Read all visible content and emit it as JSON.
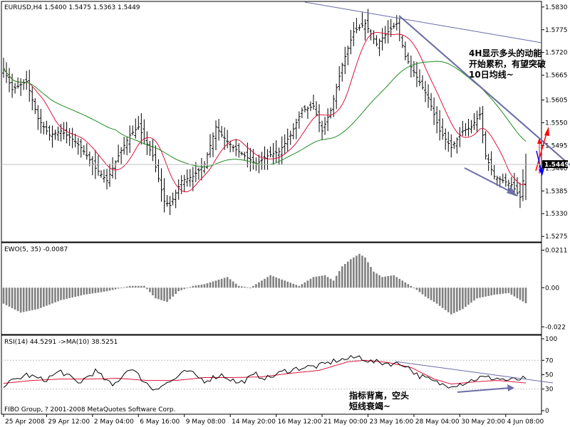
{
  "colors": {
    "background": "#ffffff",
    "frame": "#000000",
    "bar": "#000000",
    "ma_fast": "#dc143c",
    "ma_slow": "#228b22",
    "trendline": "#6a6aa8",
    "arrow_gray": "#6e6ea8",
    "arrow_red": "#ff0000",
    "arrow_blue": "#0000ff",
    "ewo_bar": "#808080",
    "rsi_line": "#000000",
    "rsi_ma": "#dc143c",
    "current_bg": "#000000",
    "level_line": "#c0c0c0"
  },
  "main_panel": {
    "title": "EURUSD,H4  1.5400 1.5475 1.5363 1.5449",
    "annotation_lines": [
      "4H显示多头的动能",
      "开始累积，有望突破",
      "10日均线~"
    ]
  },
  "ewo_panel": {
    "title": "EWO(5, 35) -0.0087"
  },
  "rsi_panel": {
    "title": "RSI(14) 44.5291  ->MA(10) 38.5251",
    "annotation_lines": [
      "指标背离，空头",
      "短线衰竭~"
    ],
    "copyright": "FIBO Group, ? 2001-2008 MetaQuotes Software Corp."
  },
  "chart_data": [
    {
      "type": "candlestick",
      "title": "EURUSD,H4  1.5400 1.5475 1.5363 1.5449",
      "last_ohlc": {
        "open": 1.54,
        "high": 1.5475,
        "low": 1.5363,
        "close": 1.5449
      },
      "y_ticks": [
        "1.5830",
        "1.5775",
        "1.5720",
        "1.5665",
        "1.5605",
        "1.5550",
        "1.5495",
        "1.5440",
        "1.5385",
        "1.5330",
        "1.5275"
      ],
      "ylim": [
        1.5265,
        1.584
      ],
      "current_price": "1.5449",
      "overlays": [
        "fast moving average",
        "slow moving average",
        "trendlines",
        "arrows"
      ],
      "close_anchors": [
        [
          0,
          1.568
        ],
        [
          3,
          1.563
        ],
        [
          8,
          1.565
        ],
        [
          12,
          1.556
        ],
        [
          16,
          1.552
        ],
        [
          20,
          1.553
        ],
        [
          24,
          1.551
        ],
        [
          27,
          1.549
        ],
        [
          32,
          1.544
        ],
        [
          36,
          1.541
        ],
        [
          40,
          1.547
        ],
        [
          44,
          1.552
        ],
        [
          47,
          1.554
        ],
        [
          52,
          1.547
        ],
        [
          56,
          1.536
        ],
        [
          58,
          1.535
        ],
        [
          62,
          1.541
        ],
        [
          66,
          1.542
        ],
        [
          70,
          1.545
        ],
        [
          74,
          1.554
        ],
        [
          76,
          1.552
        ],
        [
          80,
          1.549
        ],
        [
          84,
          1.547
        ],
        [
          88,
          1.545
        ],
        [
          92,
          1.547
        ],
        [
          96,
          1.548
        ],
        [
          100,
          1.552
        ],
        [
          104,
          1.558
        ],
        [
          108,
          1.559
        ],
        [
          111,
          1.553
        ],
        [
          114,
          1.558
        ],
        [
          118,
          1.569
        ],
        [
          122,
          1.577
        ],
        [
          126,
          1.579
        ],
        [
          130,
          1.574
        ],
        [
          134,
          1.577
        ],
        [
          137,
          1.579
        ],
        [
          140,
          1.571
        ],
        [
          144,
          1.566
        ],
        [
          148,
          1.561
        ],
        [
          152,
          1.553
        ],
        [
          156,
          1.549
        ],
        [
          160,
          1.553
        ],
        [
          163,
          1.554
        ],
        [
          166,
          1.557
        ],
        [
          168,
          1.547
        ],
        [
          171,
          1.542
        ],
        [
          174,
          1.541
        ],
        [
          177,
          1.54
        ],
        [
          180,
          1.537
        ],
        [
          182,
          1.5449
        ]
      ]
    },
    {
      "type": "bar",
      "title": "EWO(5, 35) -0.0087",
      "y_ticks": [
        "0.0211",
        "0.00",
        "-0.022"
      ],
      "ylim": [
        -0.0255,
        0.0245
      ],
      "anchors": [
        [
          0,
          -0.009
        ],
        [
          6,
          -0.014
        ],
        [
          12,
          -0.012
        ],
        [
          20,
          -0.007
        ],
        [
          28,
          -0.004
        ],
        [
          36,
          -0.002
        ],
        [
          44,
          0.001
        ],
        [
          49,
          0.001
        ],
        [
          53,
          -0.006
        ],
        [
          57,
          -0.008
        ],
        [
          61,
          -0.002
        ],
        [
          66,
          0.001
        ],
        [
          70,
          0.002
        ],
        [
          74,
          0.004
        ],
        [
          78,
          0.006
        ],
        [
          82,
          0.001
        ],
        [
          86,
          0.0
        ],
        [
          90,
          0.004
        ],
        [
          93,
          0.007
        ],
        [
          98,
          0.004
        ],
        [
          103,
          0.001
        ],
        [
          108,
          0.006
        ],
        [
          112,
          0.007
        ],
        [
          115,
          0.004
        ],
        [
          118,
          0.012
        ],
        [
          121,
          0.016
        ],
        [
          124,
          0.019
        ],
        [
          126,
          0.017
        ],
        [
          129,
          0.009
        ],
        [
          132,
          0.006
        ],
        [
          136,
          0.007
        ],
        [
          140,
          0.003
        ],
        [
          143,
          0.0
        ],
        [
          147,
          -0.005
        ],
        [
          151,
          -0.009
        ],
        [
          156,
          -0.015
        ],
        [
          160,
          -0.012
        ],
        [
          165,
          -0.006
        ],
        [
          171,
          -0.004
        ],
        [
          176,
          -0.003
        ],
        [
          182,
          -0.0087
        ]
      ]
    },
    {
      "type": "line",
      "title": "RSI(14) 44.5291  ->MA(10) 38.5251",
      "y_ticks": [
        "100",
        "70",
        "50",
        "30",
        "0"
      ],
      "ylim": [
        -3,
        103
      ],
      "levels": [
        70,
        30
      ],
      "series": [
        {
          "name": "RSI(14)",
          "role": "rsi",
          "last": 44.5291
        },
        {
          "name": "MA(10)",
          "role": "ma",
          "last": 38.5251
        }
      ],
      "rsi_anchors": [
        [
          0,
          35
        ],
        [
          8,
          50
        ],
        [
          14,
          42
        ],
        [
          20,
          55
        ],
        [
          26,
          38
        ],
        [
          32,
          55
        ],
        [
          38,
          34
        ],
        [
          44,
          60
        ],
        [
          48,
          45
        ],
        [
          52,
          30
        ],
        [
          58,
          40
        ],
        [
          64,
          55
        ],
        [
          70,
          42
        ],
        [
          76,
          50
        ],
        [
          82,
          38
        ],
        [
          88,
          50
        ],
        [
          92,
          45
        ],
        [
          98,
          55
        ],
        [
          104,
          60
        ],
        [
          110,
          62
        ],
        [
          116,
          70
        ],
        [
          120,
          72
        ],
        [
          124,
          75
        ],
        [
          128,
          68
        ],
        [
          134,
          66
        ],
        [
          140,
          64
        ],
        [
          144,
          50
        ],
        [
          150,
          40
        ],
        [
          154,
          35
        ],
        [
          160,
          38
        ],
        [
          166,
          46
        ],
        [
          172,
          45
        ],
        [
          176,
          42
        ],
        [
          182,
          44.5291
        ]
      ],
      "ma_anchors": [
        [
          0,
          38
        ],
        [
          10,
          42
        ],
        [
          20,
          44
        ],
        [
          30,
          44
        ],
        [
          40,
          45
        ],
        [
          50,
          42
        ],
        [
          60,
          42
        ],
        [
          70,
          46
        ],
        [
          80,
          46
        ],
        [
          90,
          47
        ],
        [
          100,
          52
        ],
        [
          110,
          56
        ],
        [
          120,
          68
        ],
        [
          126,
          70
        ],
        [
          134,
          67
        ],
        [
          142,
          60
        ],
        [
          150,
          44
        ],
        [
          156,
          37
        ],
        [
          164,
          40
        ],
        [
          172,
          42
        ],
        [
          182,
          38.5251
        ]
      ]
    }
  ],
  "x_axis": {
    "ticks": [
      {
        "i": 0,
        "label": "25 Apr 2008"
      },
      {
        "i": 15,
        "label": "29 Apr 12:00"
      },
      {
        "i": 31,
        "label": "2 May 04:00"
      },
      {
        "i": 47,
        "label": "6 May 16:00"
      },
      {
        "i": 63,
        "label": "9 May 08:00"
      },
      {
        "i": 79,
        "label": "14 May 20:00"
      },
      {
        "i": 95,
        "label": "16 May 12:00"
      },
      {
        "i": 111,
        "label": "21 May 00:00"
      },
      {
        "i": 127,
        "label": "23 May 16:00"
      },
      {
        "i": 143,
        "label": "28 May 04:00"
      },
      {
        "i": 159,
        "label": "30 May 20:00"
      },
      {
        "i": 175,
        "label": "4 Jun 08:00"
      }
    ]
  }
}
